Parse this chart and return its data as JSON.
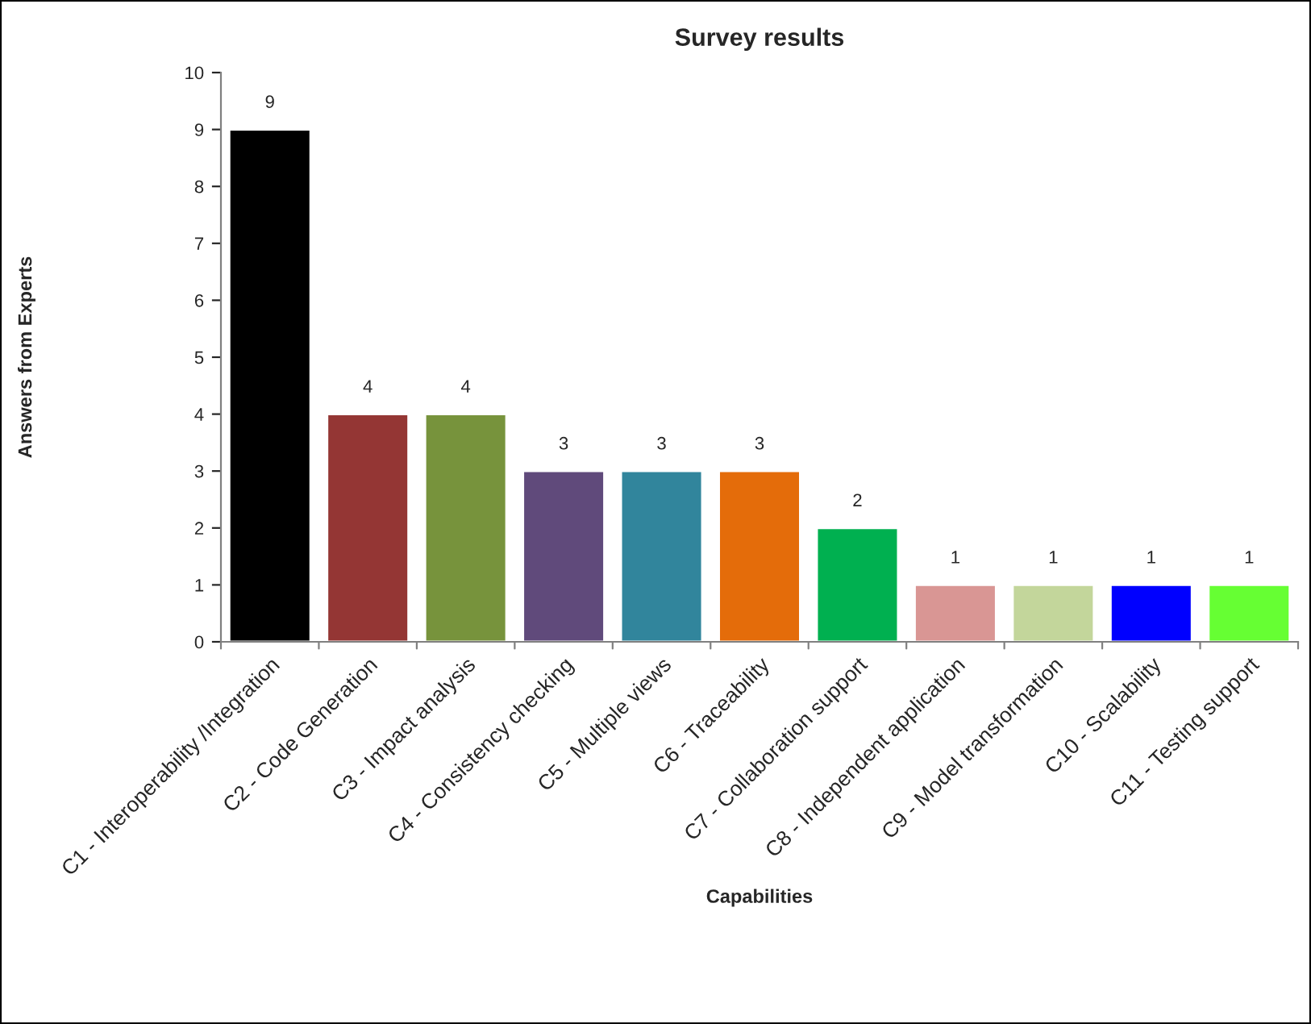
{
  "chart_data": {
    "type": "bar",
    "title": "Survey results",
    "xlabel": "Capabilities",
    "ylabel": "Answers from Experts",
    "categories": [
      "C1 - Interoperability /Integration",
      "C2 - Code Generation",
      "C3 - Impact analysis",
      "C4 - Consistency checking",
      "C5 - Multiple views",
      "C6 - Traceability",
      "C7 - Collaboration support",
      "C8 - Independent application",
      "C9 - Model transformation",
      "C10 - Scalability",
      "C11 - Testing support"
    ],
    "values": [
      9,
      4,
      4,
      3,
      3,
      3,
      2,
      1,
      1,
      1,
      1
    ],
    "colors": [
      "#000000",
      "#943634",
      "#77933c",
      "#604a7b",
      "#31859c",
      "#e46c0a",
      "#00b050",
      "#d99694",
      "#c3d69b",
      "#0000ff",
      "#66ff33"
    ],
    "ylim": [
      0,
      10
    ],
    "yticks": [
      0,
      1,
      2,
      3,
      4,
      5,
      6,
      7,
      8,
      9,
      10
    ],
    "grid": false,
    "legend": false,
    "data_labels": true
  }
}
